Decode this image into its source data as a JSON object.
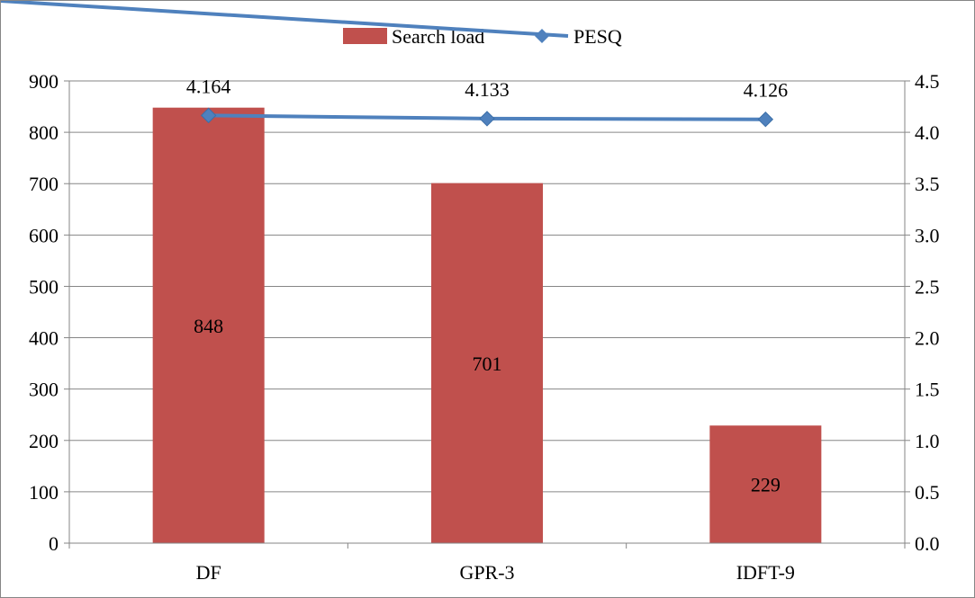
{
  "chart_data": {
    "type": "bar",
    "categories": [
      "DF",
      "GPR-3",
      "IDFT-9"
    ],
    "series": [
      {
        "name": "Search load",
        "type": "bar",
        "axis": "left",
        "color": "#C0504D",
        "values": [
          848,
          701,
          229
        ],
        "data_labels": [
          "848",
          "701",
          "229"
        ]
      },
      {
        "name": "PESQ",
        "type": "line",
        "axis": "right",
        "color": "#4F81BD",
        "marker": "diamond",
        "values": [
          4.164,
          4.133,
          4.126
        ],
        "data_labels": [
          "4.164",
          "4.133",
          "4.126"
        ]
      }
    ],
    "y_left": {
      "range": [
        0,
        900
      ],
      "ticks": [
        "0",
        "100",
        "200",
        "300",
        "400",
        "500",
        "600",
        "700",
        "800",
        "900"
      ]
    },
    "y_right": {
      "range": [
        0,
        4.5
      ],
      "ticks": [
        "0.0",
        "0.5",
        "1.0",
        "1.5",
        "2.0",
        "2.5",
        "3.0",
        "3.5",
        "4.0",
        "4.5"
      ]
    },
    "grid": "horizontal",
    "legend": "top-center"
  }
}
